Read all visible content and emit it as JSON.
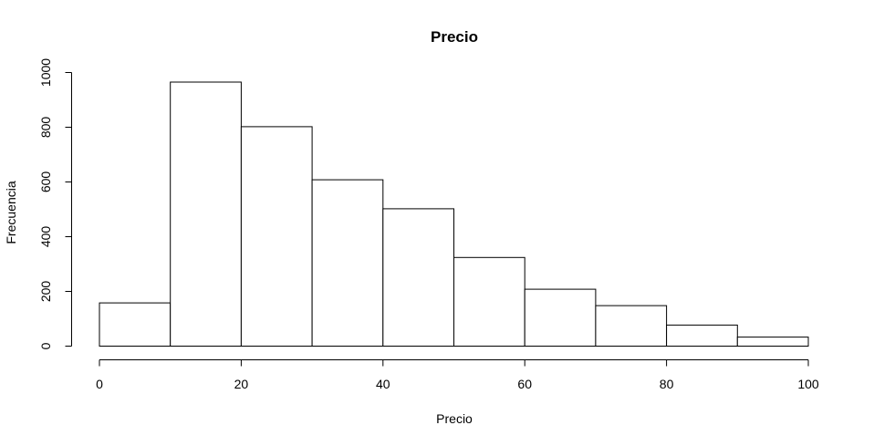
{
  "chart_data": {
    "type": "bar",
    "title": "Precio",
    "xlabel": "Precio",
    "ylabel": "Frecuencia",
    "bins": [
      {
        "start": 0,
        "end": 10,
        "value": 158
      },
      {
        "start": 10,
        "end": 20,
        "value": 965
      },
      {
        "start": 20,
        "end": 30,
        "value": 802
      },
      {
        "start": 30,
        "end": 40,
        "value": 608
      },
      {
        "start": 40,
        "end": 50,
        "value": 502
      },
      {
        "start": 50,
        "end": 60,
        "value": 324
      },
      {
        "start": 60,
        "end": 70,
        "value": 208
      },
      {
        "start": 70,
        "end": 80,
        "value": 148
      },
      {
        "start": 80,
        "end": 90,
        "value": 77
      },
      {
        "start": 90,
        "end": 100,
        "value": 33
      }
    ],
    "xlim": [
      0,
      100
    ],
    "ylim": [
      0,
      1000
    ],
    "xticks": [
      "0",
      "20",
      "40",
      "60",
      "80",
      "100"
    ],
    "yticks": [
      "0",
      "200",
      "400",
      "600",
      "800",
      "1000"
    ],
    "grid": false,
    "bar_fill": "#ffffff",
    "bar_stroke": "#000000"
  }
}
